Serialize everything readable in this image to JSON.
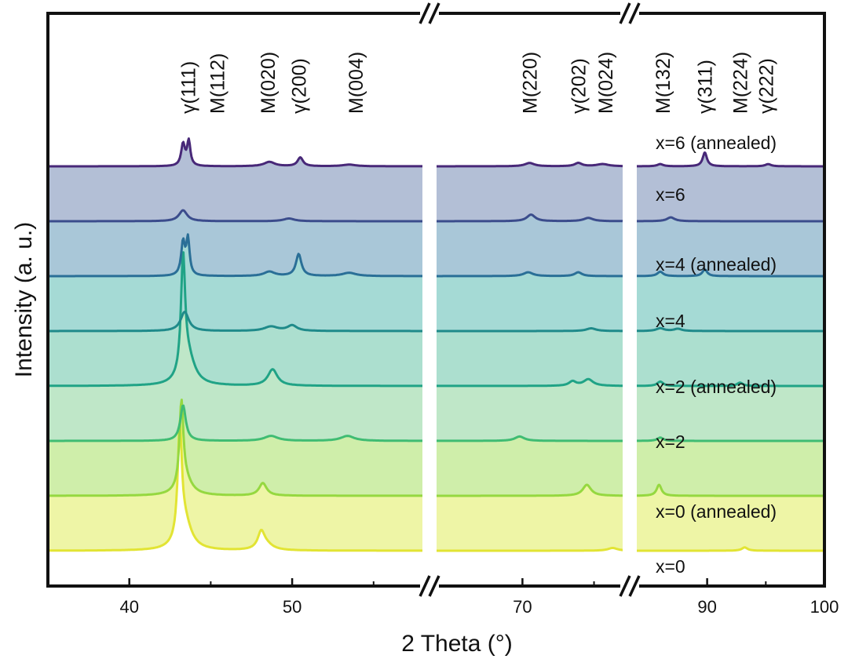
{
  "chart_data": {
    "type": "line",
    "title": "",
    "xlabel": "2 Theta (°)",
    "ylabel": "Intensity (a. u.)",
    "x_axis": {
      "broken": true,
      "segments": [
        {
          "range": [
            35,
            58
          ],
          "ticks": [
            40,
            50
          ]
        },
        {
          "range": [
            64,
            77
          ],
          "ticks": [
            70
          ]
        },
        {
          "range": [
            84,
            100
          ],
          "ticks": [
            90,
            100
          ]
        }
      ]
    },
    "grid": false,
    "legend": "inline labels inside each filled band",
    "peak_labels": [
      {
        "text": "γ(111)",
        "x": 43.6
      },
      {
        "text": "M(112)",
        "x": 45.4
      },
      {
        "text": "M(020)",
        "x": 48.5
      },
      {
        "text": "γ(200)",
        "x": 50.4
      },
      {
        "text": "M(004)",
        "x": 53.9
      },
      {
        "text": "M(220)",
        "x": 70.5
      },
      {
        "text": "γ(202)",
        "x": 73.9
      },
      {
        "text": "M(024)",
        "x": 75.8
      },
      {
        "text": "M(132)",
        "x": 86.2
      },
      {
        "text": "γ(311)",
        "x": 89.8
      },
      {
        "text": "M(224)",
        "x": 92.8
      },
      {
        "text": "γ(222)",
        "x": 95.0
      }
    ],
    "series": [
      {
        "name": "x=0",
        "color": "#e2e434",
        "fill": "#eef5a6",
        "baseline": 0.0,
        "peaks": [
          [
            43.1,
            0.2,
            0.15
          ],
          [
            43.4,
            0.05,
            0.5
          ],
          [
            48.1,
            0.03,
            0.25
          ],
          [
            48.4,
            0.01,
            0.5
          ],
          [
            76.3,
            0.005,
            0.4
          ],
          [
            93.2,
            0.006,
            0.3
          ]
        ]
      },
      {
        "name": "x=0 (annealed)",
        "color": "#95d840",
        "fill": "#cfeeaa",
        "baseline": 0.1,
        "peaks": [
          [
            43.2,
            0.15,
            0.14
          ],
          [
            43.4,
            0.03,
            0.5
          ],
          [
            48.2,
            0.023,
            0.28
          ],
          [
            74.5,
            0.02,
            0.35
          ],
          [
            85.9,
            0.02,
            0.25
          ]
        ]
      },
      {
        "name": "x=2",
        "color": "#3fbc73",
        "fill": "#bfe7c8",
        "baseline": 0.2,
        "peaks": [
          [
            43.3,
            0.065,
            0.2
          ],
          [
            48.7,
            0.009,
            0.5
          ],
          [
            53.4,
            0.009,
            0.5
          ],
          [
            69.8,
            0.008,
            0.4
          ],
          [
            86.0,
            0.006,
            0.3
          ]
        ]
      },
      {
        "name": "x=2 (annealed)",
        "color": "#20a386",
        "fill": "#acdfcf",
        "baseline": 0.3,
        "peaks": [
          [
            43.3,
            0.21,
            0.15
          ],
          [
            43.6,
            0.05,
            0.5
          ],
          [
            48.8,
            0.03,
            0.35
          ],
          [
            73.5,
            0.008,
            0.3
          ],
          [
            74.6,
            0.012,
            0.4
          ],
          [
            86.0,
            0.008,
            0.3
          ],
          [
            92.8,
            0.006,
            0.3
          ]
        ]
      },
      {
        "name": "x=4",
        "color": "#1f8a8a",
        "fill": "#a5dad5",
        "baseline": 0.4,
        "peaks": [
          [
            43.4,
            0.035,
            0.3
          ],
          [
            48.7,
            0.008,
            0.5
          ],
          [
            50.0,
            0.01,
            0.35
          ],
          [
            74.8,
            0.005,
            0.4
          ],
          [
            86.0,
            0.005,
            0.4
          ],
          [
            87.5,
            0.004,
            0.4
          ]
        ]
      },
      {
        "name": "x=4 (annealed)",
        "color": "#2a6f97",
        "fill": "#a9c7d8",
        "baseline": 0.5,
        "peaks": [
          [
            43.3,
            0.06,
            0.14
          ],
          [
            43.6,
            0.065,
            0.12
          ],
          [
            48.6,
            0.008,
            0.4
          ],
          [
            50.4,
            0.04,
            0.2
          ],
          [
            53.5,
            0.006,
            0.5
          ],
          [
            70.4,
            0.007,
            0.4
          ],
          [
            73.9,
            0.007,
            0.3
          ],
          [
            86.0,
            0.008,
            0.3
          ],
          [
            89.8,
            0.012,
            0.25
          ]
        ]
      },
      {
        "name": "x=6",
        "color": "#3b4c8c",
        "fill": "#b3bfd6",
        "baseline": 0.6,
        "peaks": [
          [
            43.3,
            0.02,
            0.3
          ],
          [
            49.8,
            0.005,
            0.4
          ],
          [
            70.6,
            0.012,
            0.35
          ],
          [
            74.6,
            0.006,
            0.4
          ],
          [
            86.9,
            0.007,
            0.4
          ]
        ]
      },
      {
        "name": "x=6 (annealed)",
        "color": "#482878",
        "fill": "#b2adcb",
        "baseline": 0.7,
        "peaks": [
          [
            43.3,
            0.04,
            0.14
          ],
          [
            43.65,
            0.045,
            0.12
          ],
          [
            48.6,
            0.008,
            0.4
          ],
          [
            50.5,
            0.016,
            0.2
          ],
          [
            53.5,
            0.003,
            0.5
          ],
          [
            70.5,
            0.006,
            0.4
          ],
          [
            73.9,
            0.006,
            0.3
          ],
          [
            75.6,
            0.004,
            0.5
          ],
          [
            86.0,
            0.004,
            0.3
          ],
          [
            89.8,
            0.025,
            0.22
          ],
          [
            95.2,
            0.004,
            0.3
          ]
        ]
      }
    ]
  }
}
